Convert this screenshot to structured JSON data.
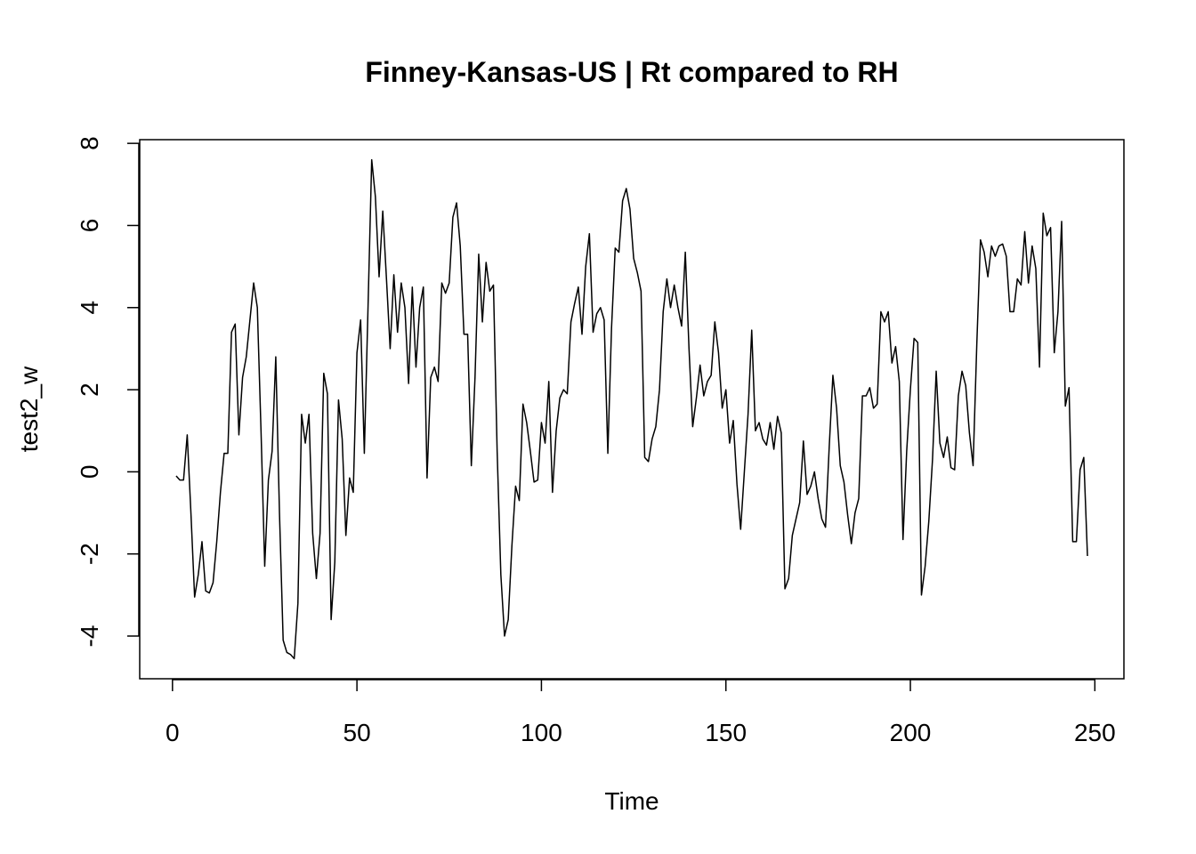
{
  "chart_data": {
    "type": "line",
    "title": "Finney-Kansas-US | Rt compared to RH",
    "x_label": "Time",
    "y_label": "test2_w",
    "x": [
      1,
      2,
      3,
      4,
      5,
      6,
      7,
      8,
      9,
      10,
      11,
      12,
      13,
      14,
      15,
      16,
      17,
      18,
      19,
      20,
      21,
      22,
      23,
      24,
      25,
      26,
      27,
      28,
      29,
      30,
      31,
      32,
      33,
      34,
      35,
      36,
      37,
      38,
      39,
      40,
      41,
      42,
      43,
      44,
      45,
      46,
      47,
      48,
      49,
      50,
      51,
      52,
      53,
      54,
      55,
      56,
      57,
      58,
      59,
      60,
      61,
      62,
      63,
      64,
      65,
      66,
      67,
      68,
      69,
      70,
      71,
      72,
      73,
      74,
      75,
      76,
      77,
      78,
      79,
      80,
      81,
      82,
      83,
      84,
      85,
      86,
      87,
      88,
      89,
      90,
      91,
      92,
      93,
      94,
      95,
      96,
      97,
      98,
      99,
      100,
      101,
      102,
      103,
      104,
      105,
      106,
      107,
      108,
      109,
      110,
      111,
      112,
      113,
      114,
      115,
      116,
      117,
      118,
      119,
      120,
      121,
      122,
      123,
      124,
      125,
      126,
      127,
      128,
      129,
      130,
      131,
      132,
      133,
      134,
      135,
      136,
      137,
      138,
      139,
      140,
      141,
      142,
      143,
      144,
      145,
      146,
      147,
      148,
      149,
      150,
      151,
      152,
      153,
      154,
      155,
      156,
      157,
      158,
      159,
      160,
      161,
      162,
      163,
      164,
      165,
      166,
      167,
      168,
      169,
      170,
      171,
      172,
      173,
      174,
      175,
      176,
      177,
      178,
      179,
      180,
      181,
      182,
      183,
      184,
      185,
      186,
      187,
      188,
      189,
      190,
      191,
      192,
      193,
      194,
      195,
      196,
      197,
      198,
      199,
      200,
      201,
      202,
      203,
      204,
      205,
      206,
      207,
      208,
      209,
      210,
      211,
      212,
      213,
      214,
      215,
      216,
      217,
      218,
      219,
      220,
      221,
      222,
      223,
      224,
      225,
      226,
      227,
      228,
      229,
      230,
      231,
      232,
      233,
      234,
      235,
      236,
      237,
      238,
      239,
      240,
      241,
      242,
      243,
      244,
      245,
      246,
      247,
      248
    ],
    "series": [
      {
        "name": "test2_w",
        "color": "#000000",
        "values": [
          -0.1,
          -0.2,
          -0.2,
          0.9,
          -1.0,
          -3.05,
          -2.5,
          -1.7,
          -2.9,
          -2.95,
          -2.7,
          -1.7,
          -0.5,
          0.45,
          0.45,
          3.4,
          3.6,
          0.9,
          2.3,
          2.8,
          3.7,
          4.6,
          4.0,
          1.0,
          -2.3,
          -0.2,
          0.5,
          2.8,
          -1.0,
          -4.1,
          -4.4,
          -4.45,
          -4.55,
          -3.2,
          1.4,
          0.7,
          1.4,
          -1.5,
          -2.6,
          -1.5,
          2.4,
          1.9,
          -3.6,
          -2.2,
          1.75,
          0.8,
          -1.55,
          -0.15,
          -0.5,
          2.9,
          3.7,
          0.45,
          4.0,
          7.6,
          6.7,
          4.75,
          6.35,
          4.7,
          3.0,
          4.8,
          3.4,
          4.6,
          4.0,
          2.15,
          4.5,
          2.55,
          4.0,
          4.5,
          -0.15,
          2.3,
          2.55,
          2.2,
          4.6,
          4.35,
          4.6,
          6.2,
          6.55,
          5.5,
          3.35,
          3.35,
          0.15,
          2.3,
          5.3,
          3.65,
          5.1,
          4.4,
          4.55,
          0.5,
          -2.5,
          -4.0,
          -3.6,
          -1.8,
          -0.35,
          -0.7,
          1.65,
          1.2,
          0.5,
          -0.25,
          -0.2,
          1.2,
          0.7,
          2.2,
          -0.5,
          1.0,
          1.8,
          2.0,
          1.9,
          3.65,
          4.1,
          4.5,
          3.35,
          5.0,
          5.8,
          3.4,
          3.85,
          4.0,
          3.7,
          0.45,
          3.5,
          5.45,
          5.35,
          6.6,
          6.9,
          6.4,
          5.2,
          4.85,
          4.4,
          0.35,
          0.25,
          0.8,
          1.1,
          2.0,
          3.9,
          4.7,
          4.0,
          4.55,
          4.0,
          3.55,
          5.35,
          3.0,
          1.1,
          1.8,
          2.6,
          1.85,
          2.2,
          2.35,
          3.65,
          2.9,
          1.55,
          2.0,
          0.7,
          1.25,
          -0.3,
          -1.4,
          0.0,
          1.4,
          3.45,
          1.0,
          1.2,
          0.8,
          0.65,
          1.2,
          0.55,
          1.35,
          0.95,
          -2.85,
          -2.6,
          -1.55,
          -1.15,
          -0.75,
          0.75,
          -0.55,
          -0.35,
          0.0,
          -0.65,
          -1.15,
          -1.35,
          0.6,
          2.35,
          1.55,
          0.15,
          -0.25,
          -1.05,
          -1.75,
          -1.0,
          -0.65,
          1.85,
          1.85,
          2.05,
          1.55,
          1.65,
          3.9,
          3.65,
          3.9,
          2.65,
          3.05,
          2.2,
          -1.65,
          0.5,
          2.0,
          3.25,
          3.15,
          -3.0,
          -2.3,
          -1.2,
          0.3,
          2.45,
          0.7,
          0.35,
          0.85,
          0.1,
          0.05,
          1.85,
          2.45,
          2.1,
          0.95,
          0.15,
          3.1,
          5.65,
          5.35,
          4.75,
          5.5,
          5.25,
          5.5,
          5.55,
          5.25,
          3.9,
          3.9,
          4.7,
          4.55,
          5.85,
          4.6,
          5.5,
          4.95,
          2.55,
          6.3,
          5.75,
          5.95,
          2.9,
          3.9,
          6.1,
          1.6,
          2.05,
          -1.7,
          -1.7,
          0.05,
          0.35,
          -2.05
        ]
      }
    ],
    "xlim": [
      -8.88,
      257.88
    ],
    "xticks": [
      0,
      50,
      100,
      150,
      200,
      250
    ],
    "ylim": [
      -5.04,
      8.09
    ],
    "yticks": [
      -4,
      -2,
      0,
      2,
      4,
      6,
      8
    ],
    "grid": false
  }
}
